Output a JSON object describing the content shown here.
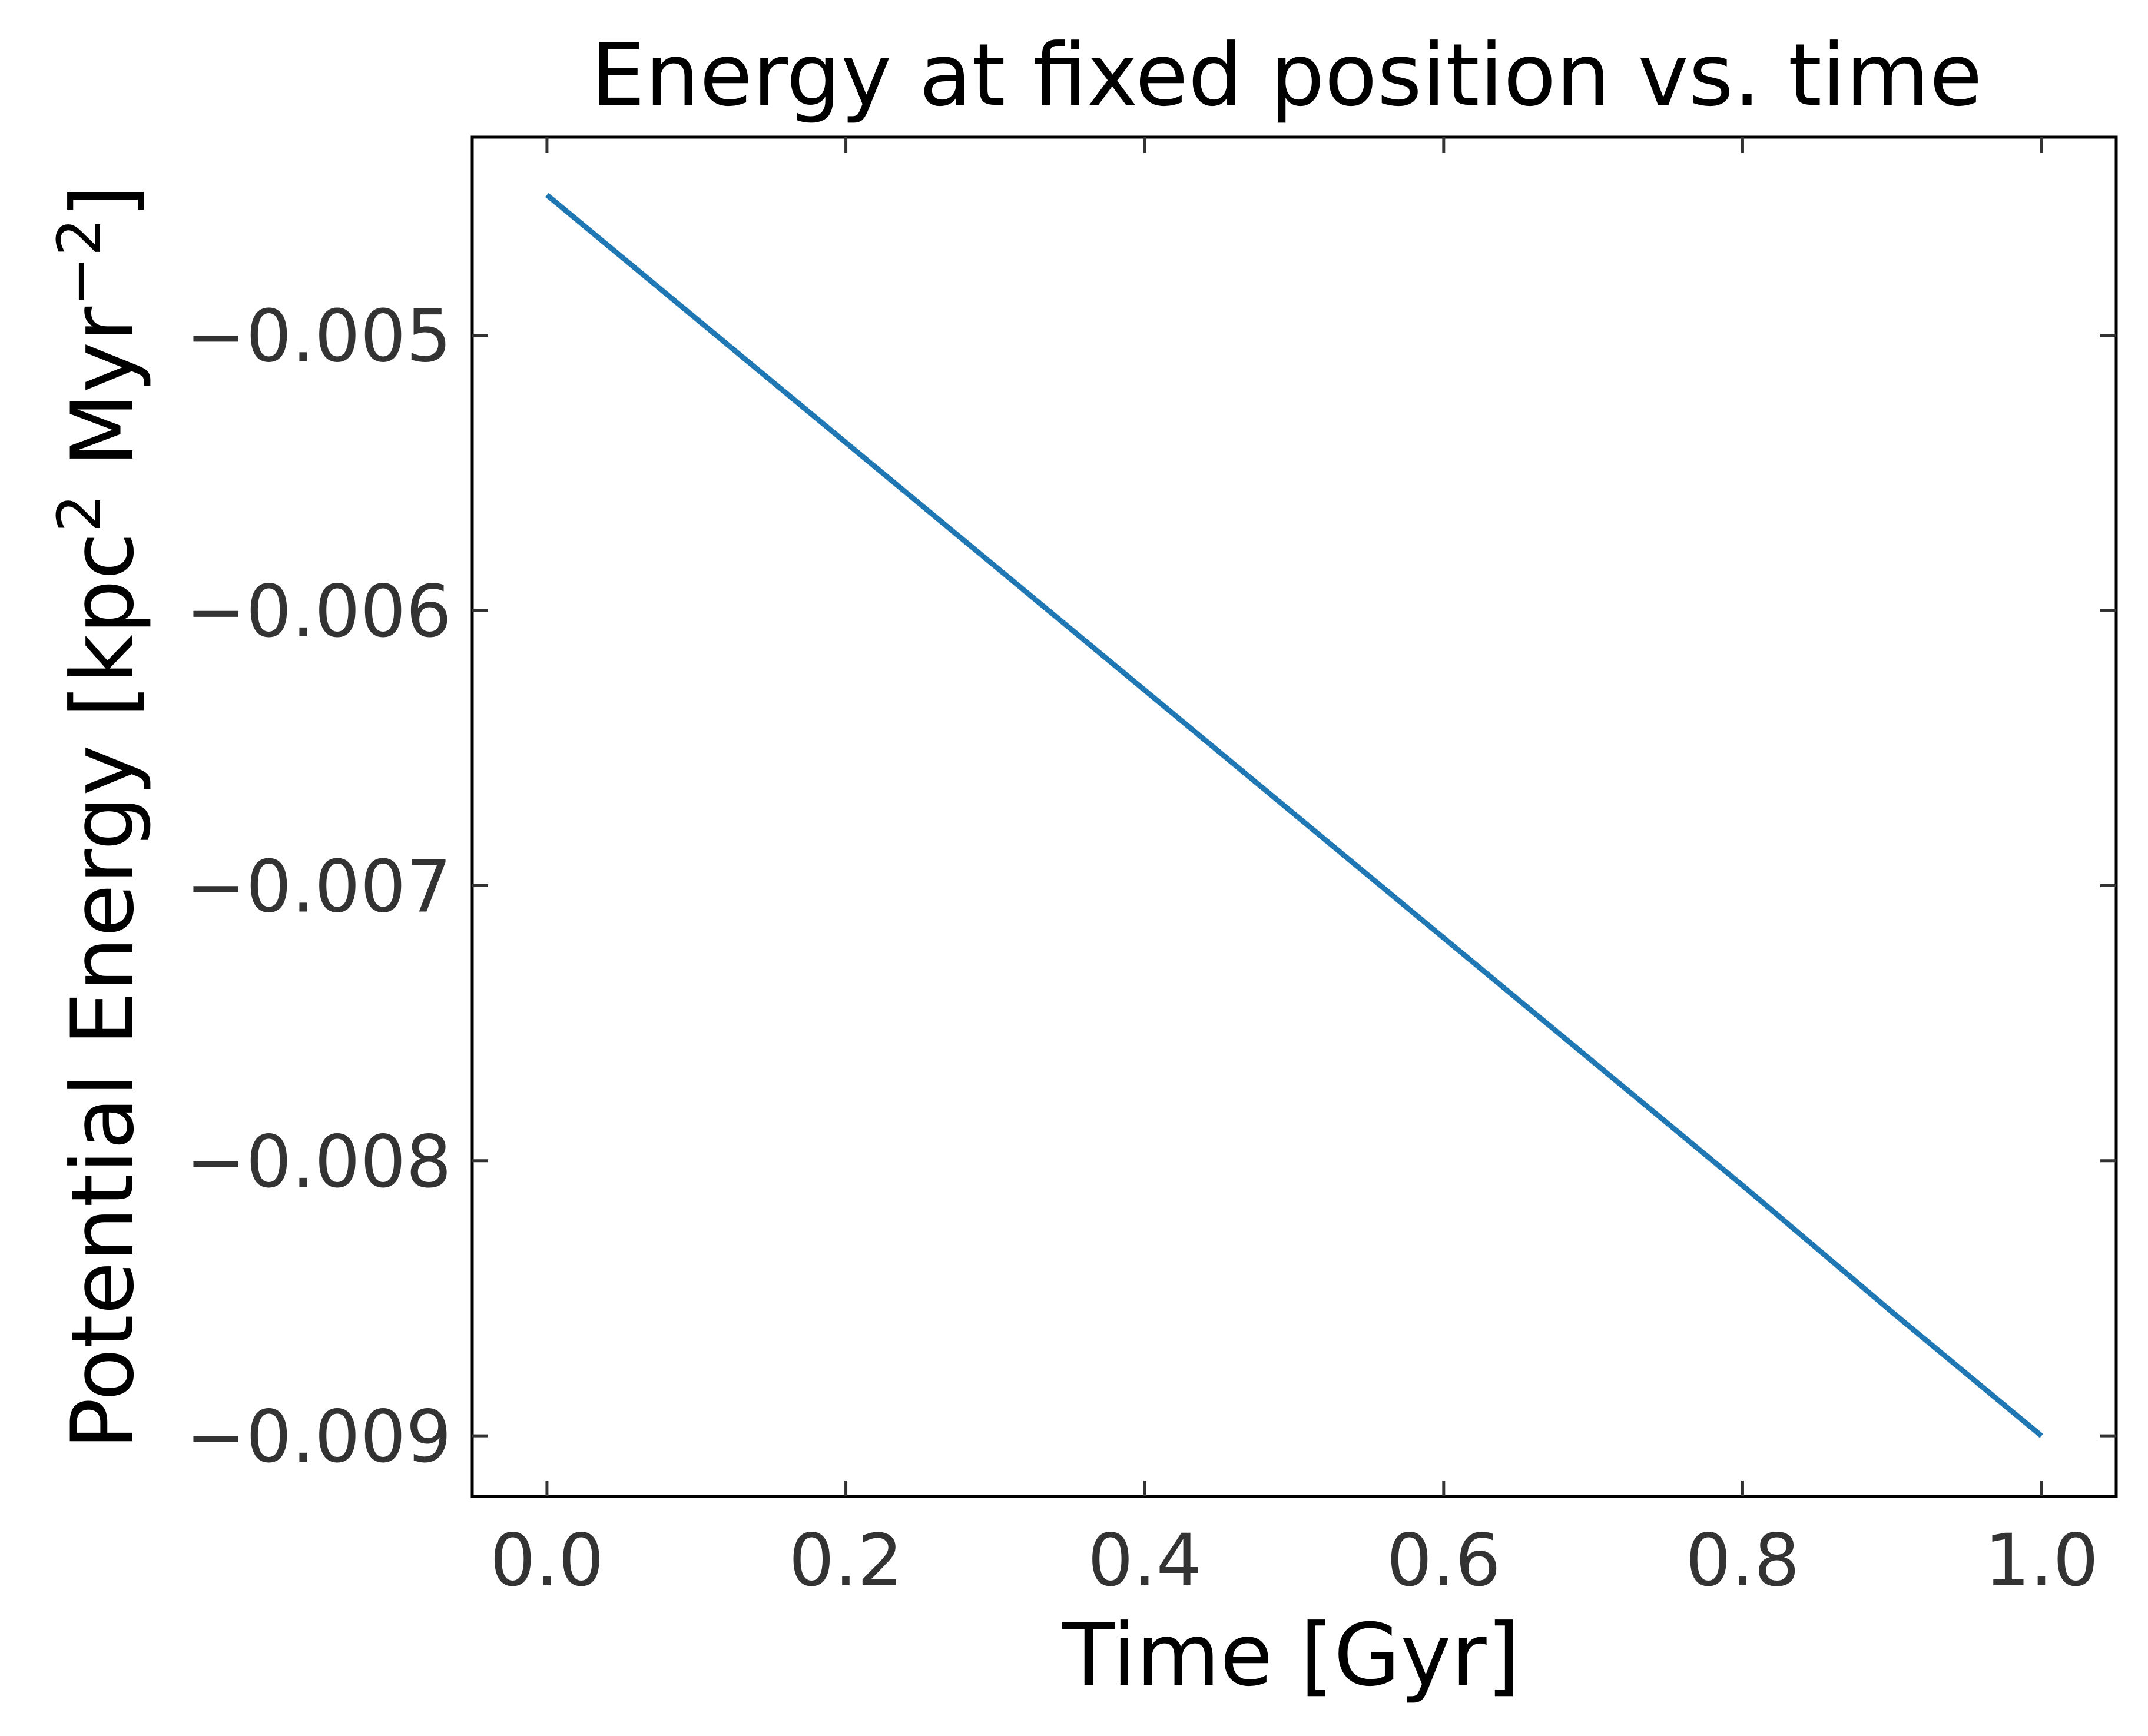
{
  "chart_data": {
    "type": "line",
    "title": "Energy at fixed position vs. time",
    "xlabel": "Time [Gyr]",
    "ylabel": {
      "before": "Potential Energy [kpc",
      "sup1": "2",
      "middle": " Myr",
      "sup2": "−2",
      "after": "]"
    },
    "xlim": [
      -0.05,
      1.05
    ],
    "ylim": [
      -0.00922,
      -0.00428
    ],
    "xticks": [
      0.0,
      0.2,
      0.4,
      0.6,
      0.8,
      1.0
    ],
    "xtick_labels": [
      "0.0",
      "0.2",
      "0.4",
      "0.6",
      "0.8",
      "1.0"
    ],
    "yticks": [
      -0.005,
      -0.006,
      -0.007,
      -0.008,
      -0.009
    ],
    "ytick_labels": [
      "−0.005",
      "−0.006",
      "−0.007",
      "−0.008",
      "−0.009"
    ],
    "grid": false,
    "series": [
      {
        "color": "#1f77b4",
        "x": [
          0.0,
          0.1,
          0.2,
          0.3,
          0.4,
          0.5,
          0.6,
          0.7,
          0.8,
          0.9,
          1.0
        ],
        "y": [
          -0.00449,
          -0.00494,
          -0.00539,
          -0.00584,
          -0.00629,
          -0.00674,
          -0.00719,
          -0.00764,
          -0.00809,
          -0.00855,
          -0.009
        ]
      }
    ]
  }
}
